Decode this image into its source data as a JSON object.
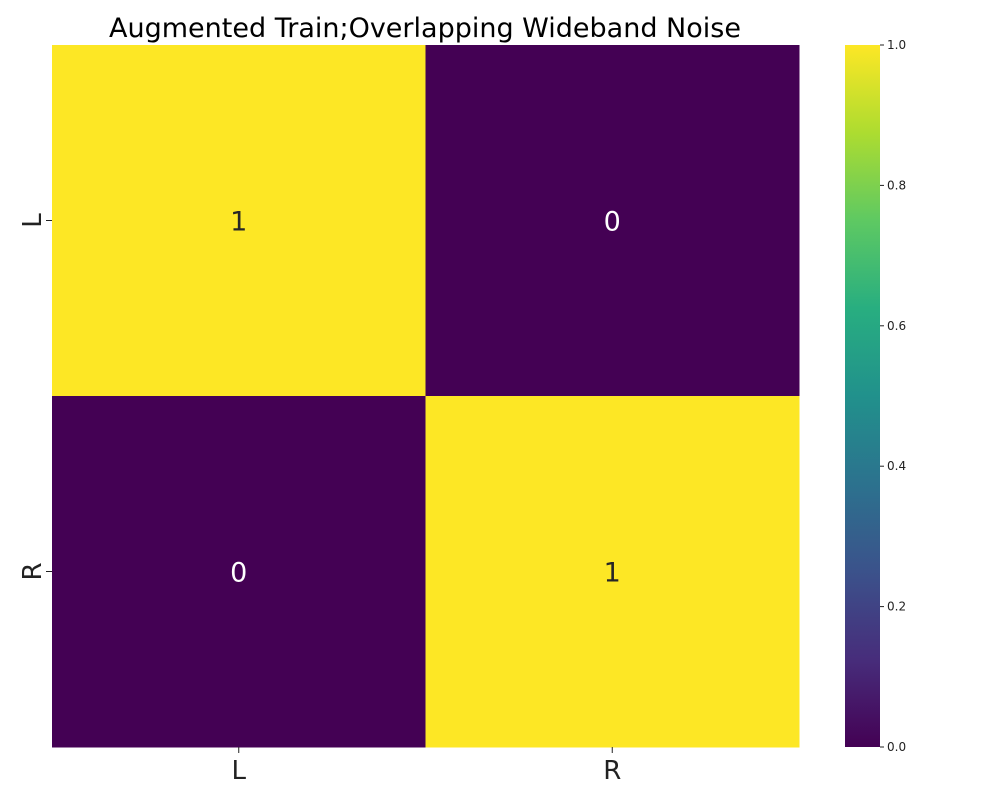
{
  "chart_data": {
    "type": "heatmap",
    "title": "Augmented Train;Overlapping Wideband Noise",
    "x_categories": [
      "L",
      "R"
    ],
    "y_categories": [
      "L",
      "R"
    ],
    "values": [
      [
        1,
        0
      ],
      [
        0,
        1
      ]
    ],
    "cell_labels": [
      [
        "1",
        "0"
      ],
      [
        "0",
        "1"
      ]
    ],
    "colormap": "viridis",
    "colorbar": {
      "range": [
        0.0,
        1.0
      ],
      "ticks": [
        "0.0",
        "0.2",
        "0.4",
        "0.6",
        "0.8",
        "1.0"
      ]
    },
    "colors": {
      "high": "#fde725",
      "low": "#440154",
      "label_on_high": "#262626",
      "label_on_low": "#ffffff"
    }
  }
}
